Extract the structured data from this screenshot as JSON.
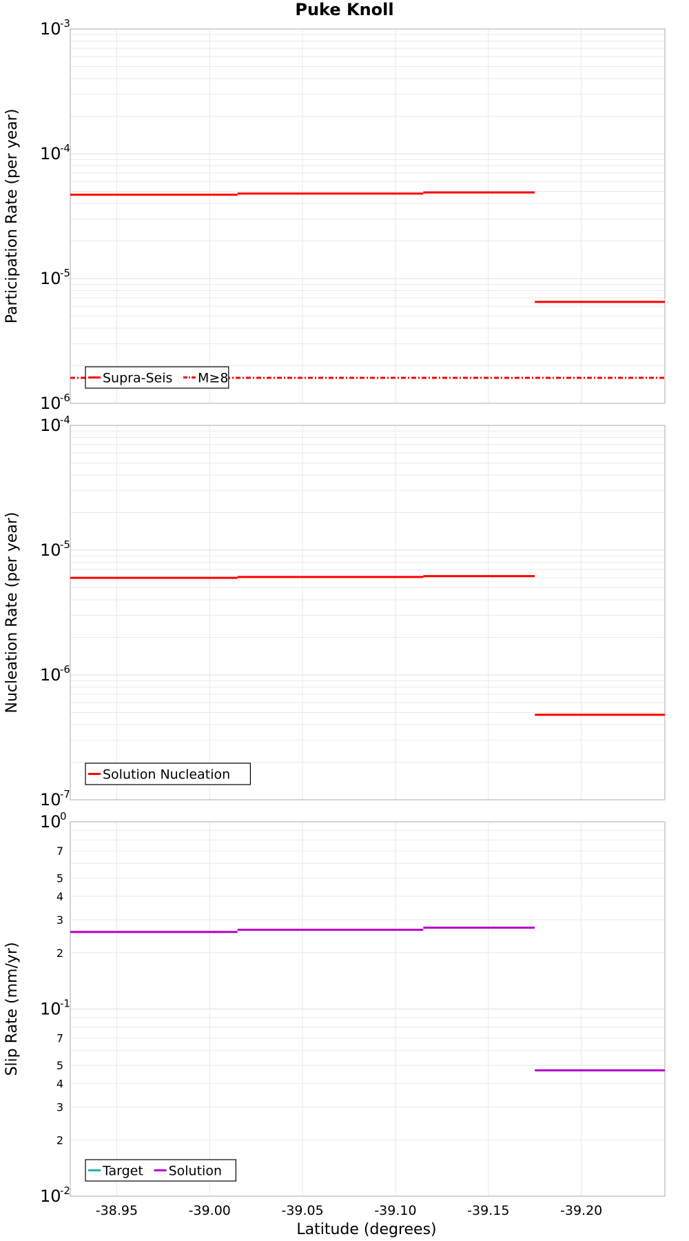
{
  "title": "Puke Knoll",
  "xlabel": "Latitude (degrees)",
  "colors": {
    "red": "#ff0000",
    "magenta": "#b800c8",
    "teal": "#20b2aa",
    "grid": "#e9e9e9",
    "border": "#b8b8b8"
  },
  "chart_data": [
    {
      "type": "line",
      "name": "participation",
      "ylabel": "Participation Rate (per year)",
      "yscale": "log",
      "ylim": [
        1e-06,
        0.001
      ],
      "xlim": [
        -38.925,
        -39.245
      ],
      "xticks": [
        -38.95,
        -39.0,
        -39.05,
        -39.1,
        -39.15,
        -39.2
      ],
      "xtick_labels": [
        "-38.95",
        "-39.00",
        "-39.05",
        "-39.10",
        "-39.15",
        "-39.20"
      ],
      "yticks": [
        {
          "value": 1e-06,
          "base": "10",
          "exp": "-6"
        },
        {
          "value": 1e-05,
          "base": "10",
          "exp": "-5"
        },
        {
          "value": 0.0001,
          "base": "10",
          "exp": "-4"
        },
        {
          "value": 0.001,
          "base": "10",
          "exp": "-3"
        }
      ],
      "grid": true,
      "legend": {
        "position": "bottom-left",
        "entries": [
          "Supra-Seis",
          "M≥8"
        ]
      },
      "series": [
        {
          "name": "Supra-Seis",
          "style": "solid",
          "color": "#ff0000",
          "segments": [
            {
              "x0": -38.925,
              "x1": -39.015,
              "y": 4.7e-05
            },
            {
              "x0": -39.015,
              "x1": -39.115,
              "y": 4.8e-05
            },
            {
              "x0": -39.115,
              "x1": -39.175,
              "y": 4.9e-05
            },
            {
              "x0": -39.175,
              "x1": -39.245,
              "y": 6.5e-06
            }
          ]
        },
        {
          "name": "M≥8",
          "style": "dashdot",
          "color": "#ff0000",
          "segments": [
            {
              "x0": -38.925,
              "x1": -39.245,
              "y": 1.6e-06
            }
          ]
        }
      ]
    },
    {
      "type": "line",
      "name": "nucleation",
      "ylabel": "Nucleation Rate (per year)",
      "yscale": "log",
      "ylim": [
        1e-07,
        0.0001
      ],
      "xlim": [
        -38.925,
        -39.245
      ],
      "xticks": [
        -38.95,
        -39.0,
        -39.05,
        -39.1,
        -39.15,
        -39.2
      ],
      "yticks": [
        {
          "value": 1e-07,
          "base": "10",
          "exp": "-7"
        },
        {
          "value": 1e-06,
          "base": "10",
          "exp": "-6"
        },
        {
          "value": 1e-05,
          "base": "10",
          "exp": "-5"
        },
        {
          "value": 0.0001,
          "base": "10",
          "exp": "-4"
        }
      ],
      "grid": true,
      "legend": {
        "position": "bottom-left",
        "entries": [
          "Solution Nucleation"
        ]
      },
      "series": [
        {
          "name": "Solution Nucleation",
          "style": "solid",
          "color": "#ff0000",
          "segments": [
            {
              "x0": -38.925,
              "x1": -39.015,
              "y": 6e-06
            },
            {
              "x0": -39.015,
              "x1": -39.115,
              "y": 6.1e-06
            },
            {
              "x0": -39.115,
              "x1": -39.175,
              "y": 6.2e-06
            },
            {
              "x0": -39.175,
              "x1": -39.245,
              "y": 4.8e-07
            }
          ]
        }
      ]
    },
    {
      "type": "line",
      "name": "slip",
      "ylabel": "Slip Rate (mm/yr)",
      "yscale": "log",
      "ylim": [
        0.01,
        1.0
      ],
      "xlim": [
        -38.925,
        -39.245
      ],
      "xticks": [
        -38.95,
        -39.0,
        -39.05,
        -39.1,
        -39.15,
        -39.2
      ],
      "yticks": [
        {
          "value": 0.01,
          "base": "10",
          "exp": "-2"
        },
        {
          "value": 0.1,
          "base": "10",
          "exp": "-1"
        },
        {
          "value": 1.0,
          "base": "10",
          "exp": "0"
        }
      ],
      "minor_ticks": [
        {
          "value": 0.02,
          "label": "2"
        },
        {
          "value": 0.03,
          "label": "3"
        },
        {
          "value": 0.04,
          "label": "4"
        },
        {
          "value": 0.05,
          "label": "5"
        },
        {
          "value": 0.07,
          "label": "7"
        },
        {
          "value": 0.2,
          "label": "2"
        },
        {
          "value": 0.3,
          "label": "3"
        },
        {
          "value": 0.4,
          "label": "4"
        },
        {
          "value": 0.5,
          "label": "5"
        },
        {
          "value": 0.7,
          "label": "7"
        }
      ],
      "grid": true,
      "legend": {
        "position": "bottom-left",
        "entries": [
          "Target",
          "Solution"
        ]
      },
      "series": [
        {
          "name": "Target",
          "style": "solid",
          "color": "#20b2aa",
          "segments": []
        },
        {
          "name": "Solution",
          "style": "solid",
          "color": "#b800c8",
          "segments": [
            {
              "x0": -38.925,
              "x1": -39.015,
              "y": 0.258
            },
            {
              "x0": -39.015,
              "x1": -39.115,
              "y": 0.265
            },
            {
              "x0": -39.115,
              "x1": -39.175,
              "y": 0.272
            },
            {
              "x0": -39.175,
              "x1": -39.245,
              "y": 0.047
            }
          ]
        }
      ]
    }
  ]
}
